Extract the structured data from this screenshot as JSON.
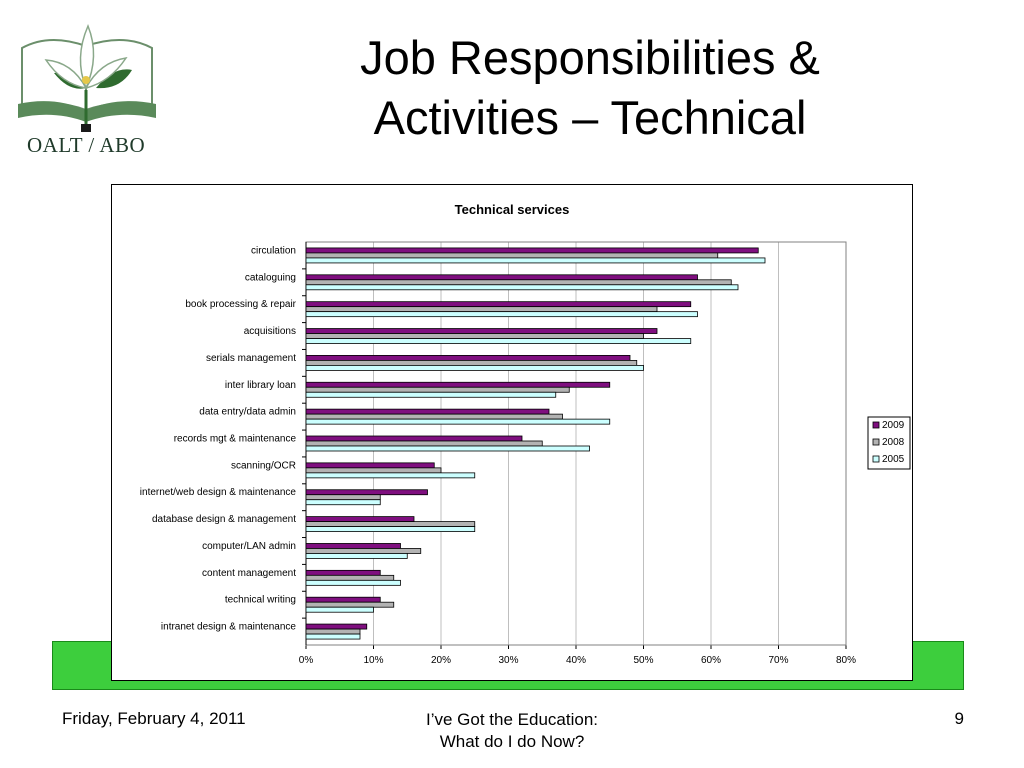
{
  "slide": {
    "title_line1": "Job Responsibilities &",
    "title_line2": "Activities – Technical",
    "logo_text": "OALT / ABO",
    "footer_date": "Friday, February 4, 2011",
    "footer_center_line1": "I’ve Got the Education:",
    "footer_center_line2": "What do I do Now?",
    "page_number": "9"
  },
  "colors": {
    "band": "#3dce3d",
    "series_2009": "#7f0f7f",
    "series_2008": "#b3b3b3",
    "series_2005": "#ccffff"
  },
  "chart_data": {
    "type": "bar",
    "orientation": "horizontal",
    "title": "Technical services",
    "xlabel": "",
    "ylabel": "",
    "xlim": [
      0,
      80
    ],
    "x_ticks": [
      "0%",
      "10%",
      "20%",
      "30%",
      "40%",
      "50%",
      "60%",
      "70%",
      "80%"
    ],
    "grid": true,
    "legend_position": "right",
    "categories": [
      "circulation",
      "cataloguing",
      "book processing & repair",
      "acquisitions",
      "serials management",
      "inter library loan",
      "data entry/data admin",
      "records mgt & maintenance",
      "scanning/OCR",
      "internet/web design & maintenance",
      "database design & management",
      "computer/LAN admin",
      "content management",
      "technical writing",
      "intranet design & maintenance"
    ],
    "series": [
      {
        "name": "2009",
        "color": "#7f0f7f",
        "values": [
          67,
          58,
          57,
          52,
          48,
          45,
          36,
          32,
          19,
          18,
          16,
          14,
          11,
          11,
          9
        ]
      },
      {
        "name": "2008",
        "color": "#b3b3b3",
        "values": [
          61,
          63,
          52,
          50,
          49,
          39,
          38,
          35,
          20,
          11,
          25,
          17,
          13,
          13,
          8
        ]
      },
      {
        "name": "2005",
        "color": "#ccffff",
        "values": [
          68,
          64,
          58,
          57,
          50,
          37,
          45,
          42,
          25,
          11,
          25,
          15,
          14,
          10,
          8
        ]
      }
    ]
  }
}
